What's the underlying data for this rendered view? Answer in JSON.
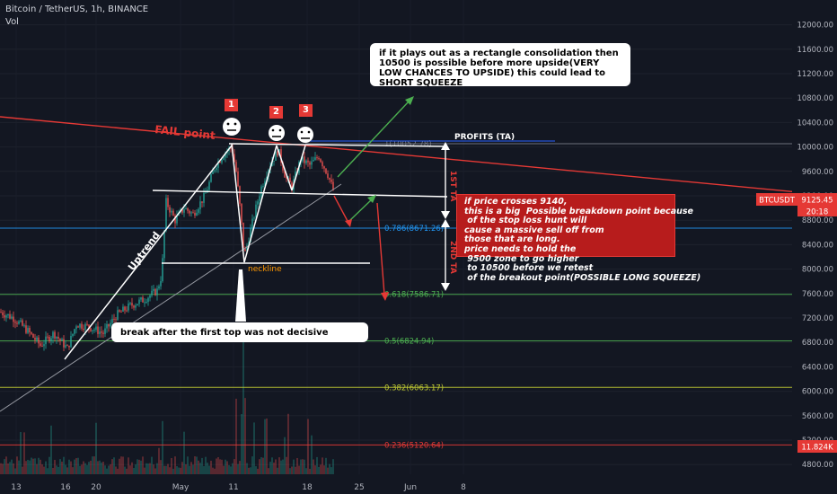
{
  "header": {
    "symbol_line": "Bitcoin / TetherUS, 1h, BINANCE",
    "volume_label": "Vol"
  },
  "colors": {
    "background": "#131722",
    "up": "#26a69a",
    "down": "#ef5350",
    "annotation_red": "#e53935",
    "arrow_green": "#4caf50"
  },
  "price_axis": {
    "ticks": [
      "12000.00",
      "11600.00",
      "11200.00",
      "10800.00",
      "10400.00",
      "10000.00",
      "9600.00",
      "9200.00",
      "8800.00",
      "8400.00",
      "8000.00",
      "7600.00",
      "7200.00",
      "6800.00",
      "6400.00",
      "6000.00",
      "5600.00",
      "5200.00",
      "4800.00"
    ],
    "ymin": 4700,
    "ymax": 12200,
    "last_price_tag": "BTCUSDT",
    "last_price": "9125.45",
    "countdown": "20:18",
    "volume_tag": "11.824K"
  },
  "time_axis": {
    "ticks": [
      "13",
      "16",
      "20",
      "May",
      "11",
      "18",
      "25",
      "Jun",
      "8"
    ]
  },
  "fib_levels": [
    {
      "label": "1(10052.78)",
      "price": 10052.78,
      "color": "#787b86"
    },
    {
      "label": "0.786(8671.26)",
      "price": 8671.26,
      "color": "#2196f3"
    },
    {
      "label": "0.618(7586.71)",
      "price": 7586.71,
      "color": "#4caf50"
    },
    {
      "label": "0.5(6824.94)",
      "price": 6824.94,
      "color": "#4caf50"
    },
    {
      "label": "0.382(6063.17)",
      "price": 6063.17,
      "color": "#c0ca33"
    },
    {
      "label": "0.236(5120.64)",
      "price": 5120.64,
      "color": "#e53935"
    }
  ],
  "annotations": {
    "fail_point": "FAIL point",
    "uptrend": "Uptrend",
    "neckline": "neckline",
    "profits": "PROFITS (TA)",
    "first_ta": "1ST TA",
    "second_ta": "2ND TA",
    "top_numbers": [
      "1",
      "2",
      "3"
    ],
    "first_top_note": "break after the first top was not decisive",
    "rectangle_note": "if it plays out as a rectangle consolidation then\n10500 is possible before more upside(VERY\nLOW CHANCES TO UPSIDE) this could lead to\nSHORT SQUEEZE",
    "breakdown_note": "if price crosses 9140,\nthis is a big  Possible breakdown point because\n of the stop loss hunt will\ncause a massive sell off from\nthose that are long.\nprice needs to hold the\n 9500 zone to go higher\n to 10500 before we retest\n of the breakout point(POSSIBLE LONG SQUEEZE)"
  },
  "chart_data": {
    "type": "candlestick",
    "symbol": "Bitcoin / TetherUS, 1h, BINANCE",
    "y_axis_range": [
      4700,
      12200
    ],
    "x_ticks": [
      "13",
      "16",
      "20",
      "May",
      "11",
      "18",
      "25",
      "Jun",
      "8"
    ],
    "price_path": [
      [
        0,
        7300
      ],
      [
        15,
        7200
      ],
      [
        30,
        7000
      ],
      [
        45,
        6750
      ],
      [
        60,
        6950
      ],
      [
        75,
        6700
      ],
      [
        85,
        7100
      ],
      [
        100,
        7050
      ],
      [
        115,
        6950
      ],
      [
        130,
        7250
      ],
      [
        145,
        7400
      ],
      [
        160,
        7500
      ],
      [
        175,
        7650
      ],
      [
        180,
        7900
      ],
      [
        185,
        9100
      ],
      [
        195,
        8800
      ],
      [
        205,
        9000
      ],
      [
        215,
        8900
      ],
      [
        228,
        9200
      ],
      [
        240,
        9700
      ],
      [
        250,
        9900
      ],
      [
        258,
        10000
      ],
      [
        263,
        9600
      ],
      [
        268,
        8900
      ],
      [
        272,
        8200
      ],
      [
        280,
        8700
      ],
      [
        290,
        9300
      ],
      [
        300,
        9700
      ],
      [
        310,
        9950
      ],
      [
        318,
        9500
      ],
      [
        325,
        9350
      ],
      [
        335,
        9800
      ],
      [
        345,
        9700
      ],
      [
        355,
        9850
      ],
      [
        365,
        9550
      ],
      [
        372,
        9250
      ]
    ],
    "fib_levels": [
      {
        "ratio": 1,
        "price": 10052.78
      },
      {
        "ratio": 0.786,
        "price": 8671.26
      },
      {
        "ratio": 0.618,
        "price": 7586.71
      },
      {
        "ratio": 0.5,
        "price": 6824.94
      },
      {
        "ratio": 0.382,
        "price": 6063.17
      },
      {
        "ratio": 0.236,
        "price": 5120.64
      }
    ],
    "last_price": 9125.45,
    "volume_last": "11.824K"
  }
}
